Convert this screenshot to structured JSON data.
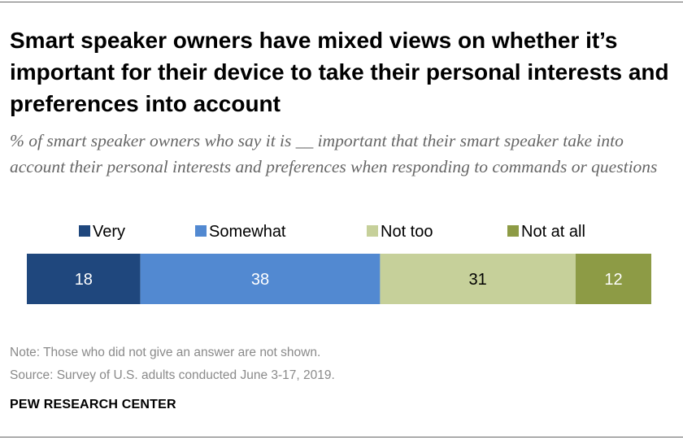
{
  "title": "Smart speaker owners have mixed views on whether it’s important for their device to take their personal interests and preferences into account",
  "subtitle": "% of smart speaker owners who say it is __ important that their smart speaker take into account their personal interests and preferences when responding to commands or questions",
  "chart_data": {
    "type": "bar",
    "orientation": "horizontal-stacked",
    "categories": [
      ""
    ],
    "series": [
      {
        "name": "Very",
        "values": [
          18
        ],
        "color": "#1f477d"
      },
      {
        "name": "Somewhat",
        "values": [
          38
        ],
        "color": "#5289d1"
      },
      {
        "name": "Not too",
        "values": [
          31
        ],
        "color": "#c6d09a"
      },
      {
        "name": "Not at all",
        "values": [
          12
        ],
        "color": "#8d9b45"
      }
    ],
    "label_colors": [
      "#ffffff",
      "#ffffff",
      "#000000",
      "#ffffff"
    ],
    "legend_position": "top",
    "xlim": [
      0,
      99
    ],
    "grid": false
  },
  "note": "Note: Those who did not give an answer are not shown.",
  "source": "Source: Survey of U.S. adults conducted June 3-17, 2019.",
  "brand": "PEW RESEARCH CENTER"
}
